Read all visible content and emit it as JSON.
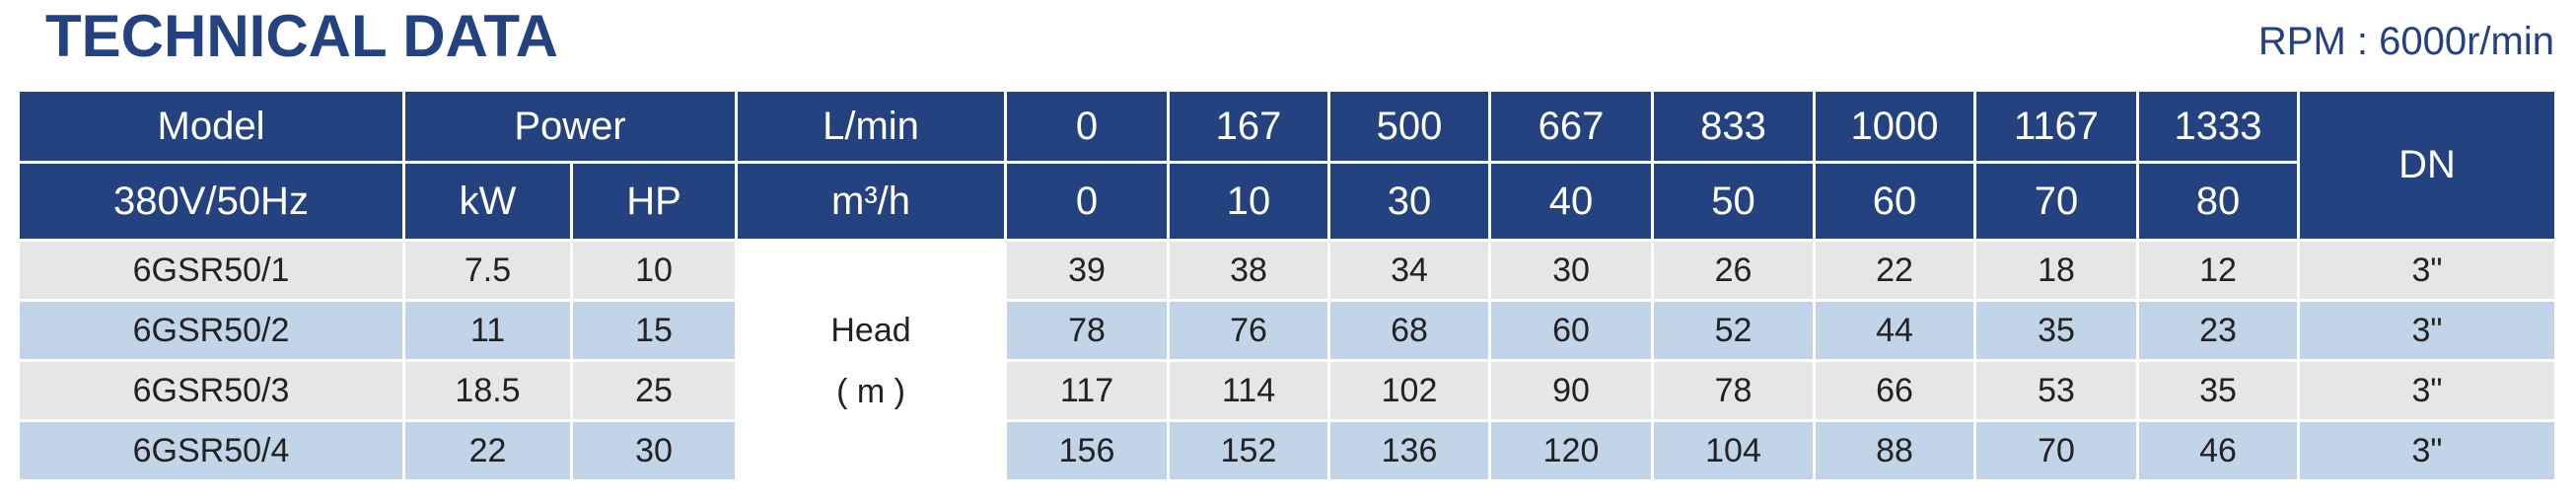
{
  "header": {
    "title": "TECHNICAL DATA",
    "rpm": "RPM : 6000r/min"
  },
  "table": {
    "head1": {
      "model": "Model",
      "power": "Power",
      "unit": "L/min",
      "flows": [
        0,
        167,
        500,
        667,
        833,
        1000,
        1167,
        1333
      ],
      "dn": "DN"
    },
    "head2": {
      "voltage": "380V/50Hz",
      "kw": "kW",
      "hp": "HP",
      "unit": "m³/h",
      "flows": [
        0,
        10,
        30,
        40,
        50,
        60,
        70,
        80
      ]
    },
    "head_label": {
      "name": "Head",
      "unit": "( m )"
    },
    "rows": [
      {
        "model": "6GSR50/1",
        "kw": 7.5,
        "hp": 10,
        "heads": [
          39,
          38,
          34,
          30,
          26,
          22,
          18,
          12
        ],
        "dn": "3\""
      },
      {
        "model": "6GSR50/2",
        "kw": 11,
        "hp": 15,
        "heads": [
          78,
          76,
          68,
          60,
          52,
          44,
          35,
          23
        ],
        "dn": "3\""
      },
      {
        "model": "6GSR50/3",
        "kw": 18.5,
        "hp": 25,
        "heads": [
          117,
          114,
          102,
          90,
          78,
          66,
          53,
          35
        ],
        "dn": "3\""
      },
      {
        "model": "6GSR50/4",
        "kw": 22,
        "hp": 30,
        "heads": [
          156,
          152,
          136,
          120,
          104,
          88,
          70,
          46
        ],
        "dn": "3\""
      }
    ]
  }
}
